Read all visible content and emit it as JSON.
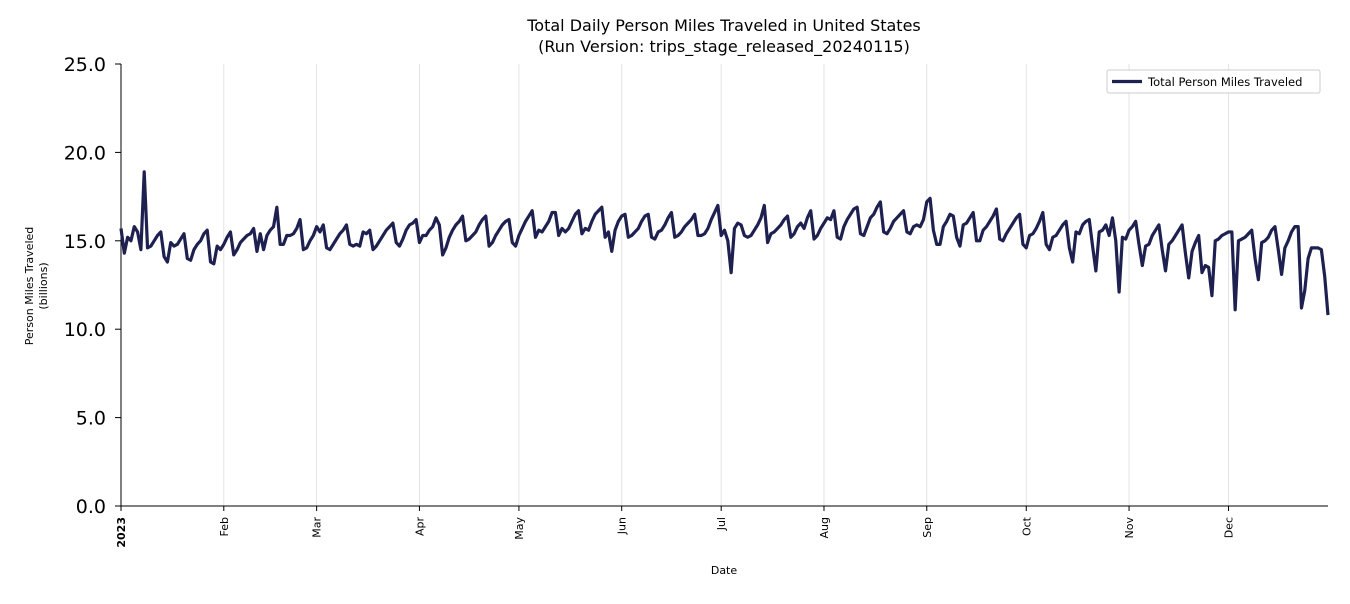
{
  "chart_data": {
    "type": "line",
    "title": "Total Daily Person Miles Traveled in United States",
    "subtitle": "(Run Version: trips_stage_released_20240115)",
    "xlabel": "Date",
    "ylabel": "Person Miles Traveled",
    "ylabel_unit": "(billions)",
    "x_start": "2023-01-01",
    "x_end": "2023-12-31",
    "x_tick_labels": [
      "2023",
      "Feb",
      "Mar",
      "Apr",
      "May",
      "Jun",
      "Jul",
      "Aug",
      "Sep",
      "Oct",
      "Nov",
      "Dec"
    ],
    "x_tick_dates": [
      "2023-01-01",
      "2023-02-01",
      "2023-03-01",
      "2023-04-01",
      "2023-05-01",
      "2023-06-01",
      "2023-07-01",
      "2023-08-01",
      "2023-09-01",
      "2023-10-01",
      "2023-11-01",
      "2023-12-01"
    ],
    "ylim": [
      0,
      25
    ],
    "y_ticks": [
      "0.0",
      "5.0",
      "10.0",
      "15.0",
      "20.0",
      "25.0"
    ],
    "grid": "vertical, at month starts",
    "legend_position": "top-right",
    "series": [
      {
        "name": "Total Person Miles Traveled",
        "color": "#1e2050",
        "values": [
          15.7,
          14.3,
          15.2,
          15.0,
          15.8,
          15.5,
          14.5,
          18.9,
          14.6,
          14.7,
          15.0,
          15.3,
          15.5,
          14.1,
          13.8,
          14.9,
          14.7,
          14.8,
          15.1,
          15.4,
          14.0,
          13.9,
          14.5,
          14.8,
          15.0,
          15.4,
          15.6,
          13.8,
          13.7,
          14.7,
          14.5,
          14.8,
          15.2,
          15.5,
          14.2,
          14.5,
          14.9,
          15.1,
          15.3,
          15.4,
          15.7,
          14.4,
          15.4,
          14.5,
          15.3,
          15.6,
          15.8,
          16.9,
          14.8,
          14.8,
          15.3,
          15.3,
          15.4,
          15.7,
          16.2,
          14.5,
          14.6,
          15.0,
          15.3,
          15.8,
          15.5,
          15.9,
          14.6,
          14.5,
          14.8,
          15.1,
          15.4,
          15.6,
          15.9,
          14.8,
          14.7,
          14.8,
          14.7,
          15.5,
          15.4,
          15.6,
          14.5,
          14.7,
          15.0,
          15.3,
          15.6,
          15.8,
          16.0,
          14.9,
          14.7,
          15.1,
          15.6,
          15.9,
          16.0,
          16.2,
          14.9,
          15.3,
          15.3,
          15.6,
          15.8,
          16.3,
          15.9,
          14.2,
          14.6,
          15.2,
          15.6,
          15.9,
          16.1,
          16.4,
          15.0,
          15.1,
          15.3,
          15.5,
          15.9,
          16.2,
          16.4,
          14.7,
          14.9,
          15.3,
          15.6,
          15.9,
          16.1,
          16.2,
          14.9,
          14.7,
          15.3,
          15.7,
          16.1,
          16.4,
          16.7,
          15.2,
          15.6,
          15.5,
          15.8,
          16.1,
          16.6,
          16.6,
          15.3,
          15.7,
          15.5,
          15.7,
          16.1,
          16.5,
          16.7,
          15.4,
          15.7,
          15.6,
          16.1,
          16.5,
          16.7,
          16.9,
          15.2,
          15.5,
          14.4,
          15.6,
          16.1,
          16.4,
          16.5,
          15.2,
          15.3,
          15.5,
          15.7,
          16.1,
          16.4,
          16.5,
          15.2,
          15.1,
          15.5,
          15.6,
          15.9,
          16.3,
          16.6,
          15.2,
          15.3,
          15.5,
          15.8,
          16.0,
          16.2,
          16.5,
          15.3,
          15.3,
          15.4,
          15.7,
          16.2,
          16.6,
          17.0,
          15.3,
          15.6,
          15.0,
          13.2,
          15.7,
          16.0,
          15.9,
          15.3,
          15.2,
          15.3,
          15.6,
          15.9,
          16.3,
          17.0,
          14.9,
          15.4,
          15.5,
          15.7,
          15.9,
          16.2,
          16.4,
          15.2,
          15.4,
          15.8,
          16.0,
          15.7,
          16.3,
          16.7,
          15.1,
          15.3,
          15.7,
          16.0,
          16.3,
          16.2,
          16.7,
          15.2,
          15.1,
          15.8,
          16.2,
          16.5,
          16.8,
          16.9,
          15.4,
          15.3,
          15.8,
          16.3,
          16.5,
          16.9,
          17.2,
          15.5,
          15.4,
          15.7,
          16.1,
          16.3,
          16.5,
          16.7,
          15.5,
          15.4,
          15.8,
          15.9,
          15.8,
          16.2,
          17.2,
          17.4,
          15.6,
          14.8,
          14.8,
          15.8,
          16.1,
          16.5,
          16.4,
          15.2,
          14.7,
          15.9,
          16.0,
          16.3,
          16.6,
          15.0,
          15.0,
          15.6,
          15.8,
          16.1,
          16.4,
          16.8,
          15.1,
          15.0,
          15.4,
          15.7,
          16.0,
          16.3,
          16.5,
          14.8,
          14.6,
          15.3,
          15.4,
          15.7,
          16.1,
          16.6,
          14.8,
          14.5,
          15.2,
          15.3,
          15.6,
          15.9,
          16.1,
          14.6,
          13.8,
          15.5,
          15.4,
          15.9,
          16.1,
          16.2,
          14.7,
          13.3,
          15.5,
          15.6,
          15.9,
          15.3,
          16.3,
          15.0,
          12.1,
          15.2,
          15.1,
          15.6,
          15.8,
          16.1,
          14.8,
          13.6,
          14.7,
          14.8,
          15.3,
          15.6,
          15.9,
          14.5,
          13.3,
          14.8,
          15.0,
          15.3,
          15.6,
          15.9,
          14.3,
          12.9,
          14.4,
          14.9,
          15.3,
          13.2,
          13.6,
          13.5,
          11.9,
          15.0,
          15.1,
          15.3,
          15.4,
          15.5,
          15.5,
          11.1,
          15.0,
          15.1,
          15.2,
          15.4,
          15.6,
          14.0,
          12.8,
          14.9,
          15.0,
          15.2,
          15.6,
          15.8,
          14.5,
          13.1,
          14.6,
          15.0,
          15.5,
          15.8,
          15.8,
          11.2,
          12.2,
          14.0,
          14.6,
          14.6,
          14.6,
          14.5,
          13.0,
          10.8
        ]
      }
    ]
  }
}
